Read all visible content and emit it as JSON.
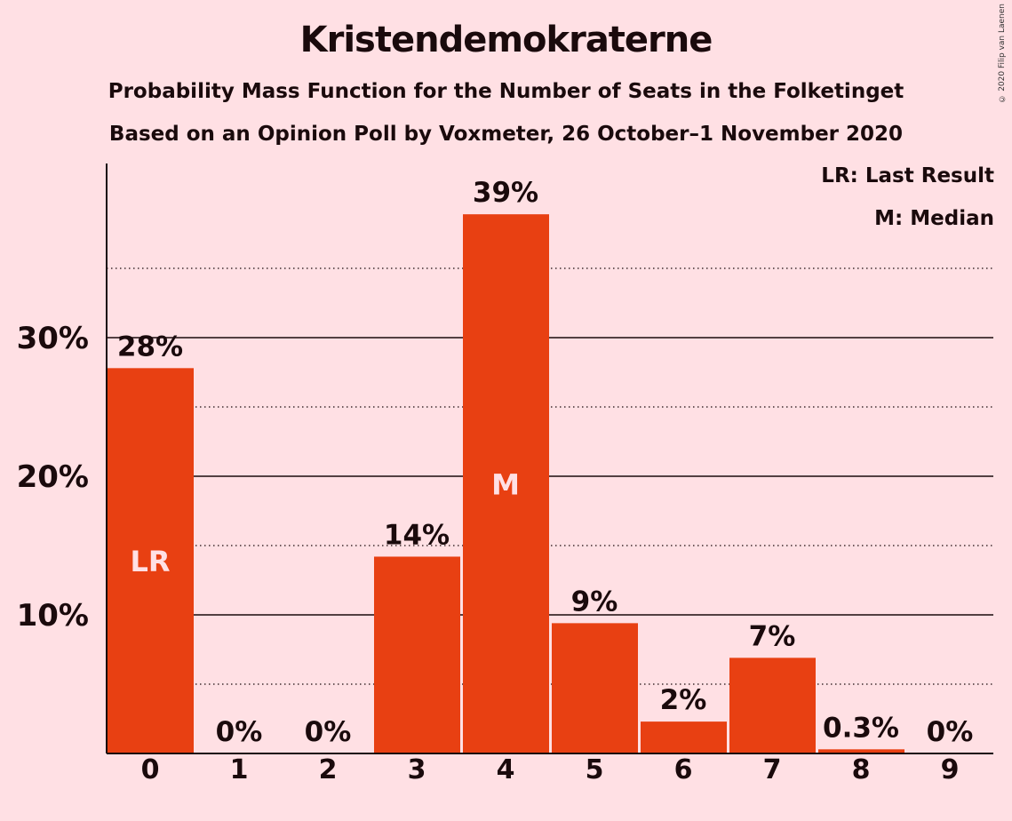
{
  "title": "Kristendemokraterne",
  "subtitle": "Probability Mass Function for the Number of Seats in the Folketinget",
  "subtitle2": "Based on an Opinion Poll by Voxmeter, 26 October–1 November 2020",
  "copyright": "© 2020 Filip van Laenen",
  "legend": {
    "last_result": "LR: Last Result",
    "median": "M: Median"
  },
  "colors": {
    "background": "#FFE0E4",
    "bar": "#E84012",
    "text": "#1a0a0c",
    "bar_marker_text": "#FFE0E4"
  },
  "chart_data": {
    "type": "bar",
    "categories": [
      "0",
      "1",
      "2",
      "3",
      "4",
      "5",
      "6",
      "7",
      "8",
      "9"
    ],
    "values": [
      27.8,
      0,
      0,
      14.2,
      38.9,
      9.4,
      2.3,
      6.9,
      0.3,
      0
    ],
    "data_labels": [
      "28%",
      "0%",
      "0%",
      "14%",
      "39%",
      "9%",
      "2%",
      "7%",
      "0.3%",
      "0%"
    ],
    "markers": {
      "0": "LR",
      "4": "M"
    },
    "yticks": [
      10,
      20,
      30
    ],
    "ytick_labels": [
      "10%",
      "20%",
      "30%"
    ],
    "minor_gridlines": [
      5,
      15,
      25,
      35
    ],
    "ylim": [
      0,
      42.5
    ],
    "grid": true,
    "legend_placement": "top-right"
  }
}
